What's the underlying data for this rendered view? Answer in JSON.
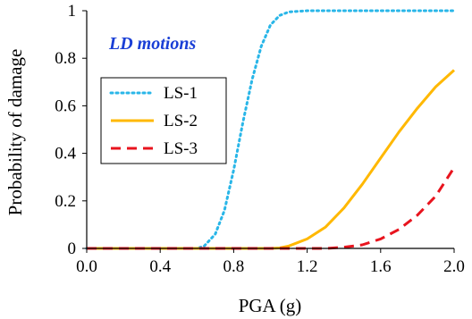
{
  "chart_data": {
    "type": "line",
    "annotation": "LD motions",
    "xlabel": "PGA (g)",
    "ylabel": "Probability of damage",
    "xlim": [
      0,
      2
    ],
    "ylim": [
      0,
      1
    ],
    "x_ticks": [
      "0.0",
      "0.4",
      "0.8",
      "1.2",
      "1.6",
      "2.0"
    ],
    "y_ticks": [
      "0",
      "0.2",
      "0.4",
      "0.6",
      "0.8",
      "1"
    ],
    "grid": false,
    "legend_position": "left-middle",
    "series": [
      {
        "name": "LS-1",
        "color": "#29b6e8",
        "style": "dotted",
        "x": [
          0.0,
          0.5,
          0.6,
          0.64,
          0.7,
          0.75,
          0.8,
          0.85,
          0.9,
          0.95,
          1.0,
          1.05,
          1.1,
          1.2,
          1.3,
          2.0
        ],
        "y": [
          0.0,
          0.0,
          0.0,
          0.01,
          0.06,
          0.16,
          0.33,
          0.53,
          0.71,
          0.85,
          0.94,
          0.98,
          0.995,
          1.0,
          1.0,
          1.0
        ]
      },
      {
        "name": "LS-2",
        "color": "#ffb800",
        "style": "solid",
        "x": [
          0.0,
          1.0,
          1.05,
          1.1,
          1.2,
          1.3,
          1.4,
          1.5,
          1.6,
          1.7,
          1.8,
          1.9,
          2.0
        ],
        "y": [
          0.0,
          0.0,
          0.002,
          0.01,
          0.04,
          0.09,
          0.17,
          0.27,
          0.38,
          0.49,
          0.59,
          0.68,
          0.75
        ]
      },
      {
        "name": "LS-3",
        "color": "#e8141e",
        "style": "dashed",
        "x": [
          0.0,
          1.3,
          1.4,
          1.5,
          1.6,
          1.7,
          1.8,
          1.9,
          2.0
        ],
        "y": [
          0.0,
          0.0,
          0.005,
          0.015,
          0.04,
          0.08,
          0.14,
          0.22,
          0.34
        ]
      }
    ]
  }
}
